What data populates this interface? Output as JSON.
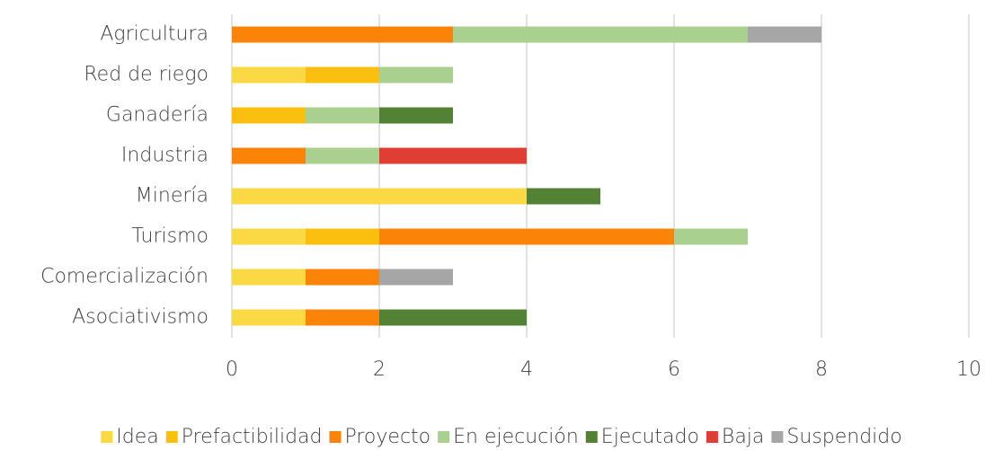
{
  "chart_data": {
    "type": "stacked-bar-horizontal",
    "categories": [
      "Agricultura",
      "Red de riego",
      "Ganadería",
      "Industria",
      "Minería",
      "Turismo",
      "Comercialización",
      "Asociativismo"
    ],
    "series": [
      {
        "name": "Idea",
        "color": "#fad944",
        "values": [
          0,
          1,
          0,
          0,
          4,
          1,
          1,
          1
        ]
      },
      {
        "name": "Prefactibilidad",
        "color": "#fbbf0f",
        "values": [
          0,
          1,
          1,
          0,
          0,
          1,
          0,
          0
        ]
      },
      {
        "name": "Proyecto",
        "color": "#fb8307",
        "values": [
          3,
          0,
          0,
          1,
          0,
          4,
          1,
          1
        ]
      },
      {
        "name": "En ejecución",
        "color": "#a9d08e",
        "values": [
          4,
          1,
          1,
          1,
          0,
          1,
          0,
          0
        ]
      },
      {
        "name": "Ejecutado",
        "color": "#548235",
        "values": [
          0,
          0,
          1,
          0,
          1,
          0,
          0,
          2
        ]
      },
      {
        "name": "Baja",
        "color": "#e03e33",
        "values": [
          0,
          0,
          0,
          2,
          0,
          0,
          0,
          0
        ]
      },
      {
        "name": "Suspendido",
        "color": "#a6a6a6",
        "values": [
          1,
          0,
          0,
          0,
          0,
          0,
          1,
          0
        ]
      }
    ],
    "xlim": [
      0,
      10
    ],
    "xticks": [
      0,
      2,
      4,
      6,
      8,
      10
    ],
    "grid": true,
    "legend": "bottom"
  }
}
